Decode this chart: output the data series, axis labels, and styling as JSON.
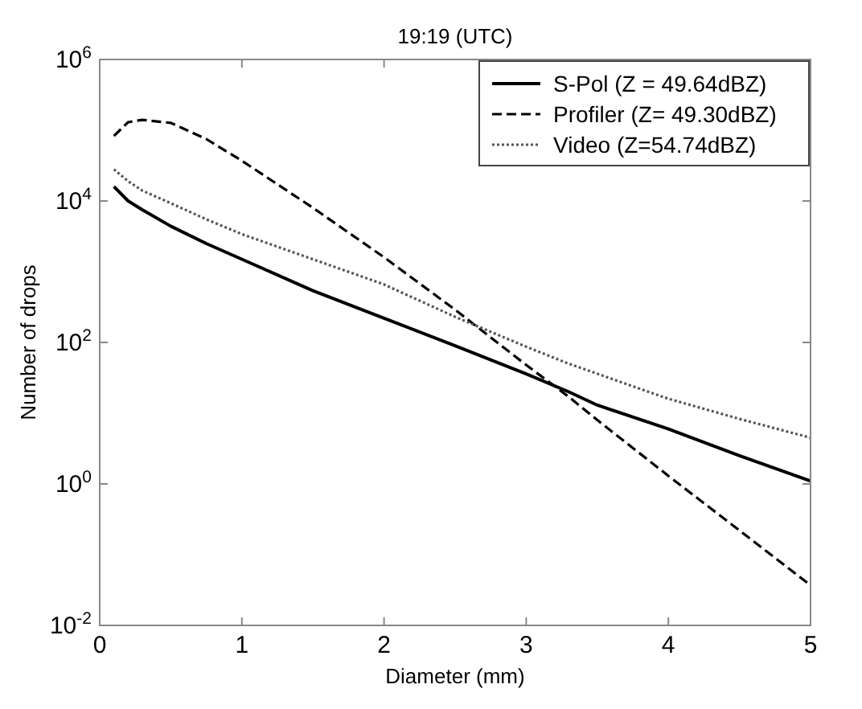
{
  "chart_data": {
    "type": "line",
    "title": "19:19 (UTC)",
    "xlabel": "Diameter (mm)",
    "ylabel": "Number of drops",
    "log": "y",
    "xlim": [
      0,
      5
    ],
    "xticks": [
      0,
      1,
      2,
      3,
      4,
      5
    ],
    "ylim": [
      0.01,
      1000000
    ],
    "yticks": [
      {
        "value": 0.01,
        "label": "10$^{-2}$"
      },
      {
        "value": 1,
        "label": "10$^{0}$"
      },
      {
        "value": 100,
        "label": "10$^{2}$"
      },
      {
        "value": 10000,
        "label": "10$^{4}$"
      },
      {
        "value": 1000000,
        "label": "10$^{6}$"
      }
    ],
    "legend": "top right",
    "grid": false,
    "x": [
      0.1,
      0.2,
      0.3,
      0.5,
      0.75,
      1,
      1.5,
      2,
      2.5,
      3,
      3.3,
      3.5,
      4,
      4.5,
      5
    ],
    "series": [
      {
        "name": "S-Pol (Z = 49.64dBZ)",
        "color": "#000000",
        "line_style": "solid",
        "values": [
          16000,
          10000,
          7500,
          4400,
          2500,
          1500,
          540,
          220,
          90,
          36,
          20,
          13,
          6,
          2.5,
          1.1
        ]
      },
      {
        "name": "Profiler (Z= 49.30dBZ)",
        "color": "#000000",
        "line_style": "dashed",
        "values": [
          83000,
          130000,
          140000,
          127000,
          75000,
          37000,
          8000,
          1600,
          290,
          48,
          17,
          8,
          1.3,
          0.22,
          0.037
        ]
      },
      {
        "name": "Video (Z=54.74dBZ)",
        "color": "#555555",
        "line_style": "dotted",
        "values": [
          28000,
          19000,
          14000,
          9300,
          5500,
          3400,
          1500,
          660,
          230,
          87,
          50,
          36,
          16,
          8.3,
          4.5
        ]
      }
    ]
  }
}
